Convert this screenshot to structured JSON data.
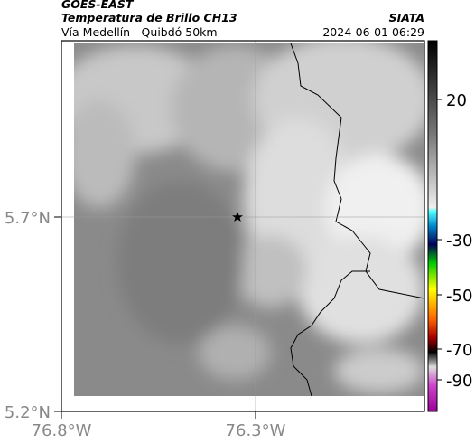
{
  "header": {
    "title": "GOES-EAST",
    "subtitle": "Temperatura de Brillo CH13",
    "route": "Vía Medellín - Quibdó 50km",
    "source": "SIATA",
    "timestamp": "2024-06-01 06:29"
  },
  "map": {
    "lat_labels": [
      "5.7°N",
      "5.2°N"
    ],
    "lon_labels": [
      "76.8°W",
      "76.3°W"
    ]
  },
  "colorbar": {
    "ticks": [
      20,
      -30,
      -50,
      -70,
      -90
    ]
  }
}
